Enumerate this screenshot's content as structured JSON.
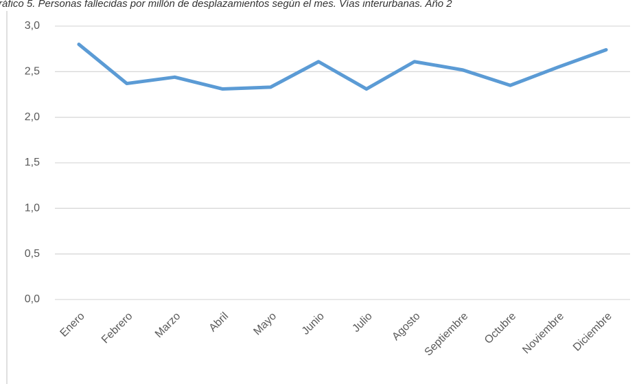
{
  "chart_data": {
    "type": "line",
    "title": "ráfico 5. Personas fallecidas por millón de desplazamientos según el mes. Vías interurbanas. Año 2",
    "categories": [
      "Enero",
      "Febrero",
      "Marzo",
      "Abril",
      "Mayo",
      "Junio",
      "Julio",
      "Agosto",
      "Septiembre",
      "Octubre",
      "Noviembre",
      "Diciembre"
    ],
    "series": [
      {
        "color": "#5b9bd5",
        "values": [
          2.8,
          2.37,
          2.44,
          2.31,
          2.33,
          2.61,
          2.31,
          2.61,
          2.52,
          2.35,
          2.55,
          2.74
        ]
      }
    ],
    "ylim": [
      0,
      3
    ],
    "yticks": [
      {
        "value": 0,
        "label": "0,0"
      },
      {
        "value": 0.5,
        "label": "0,5"
      },
      {
        "value": 1,
        "label": "1,0"
      },
      {
        "value": 1.5,
        "label": "1,5"
      },
      {
        "value": 2,
        "label": "2,0"
      },
      {
        "value": 2.5,
        "label": "2,5"
      },
      {
        "value": 3,
        "label": "3,0"
      }
    ],
    "grid": true
  }
}
